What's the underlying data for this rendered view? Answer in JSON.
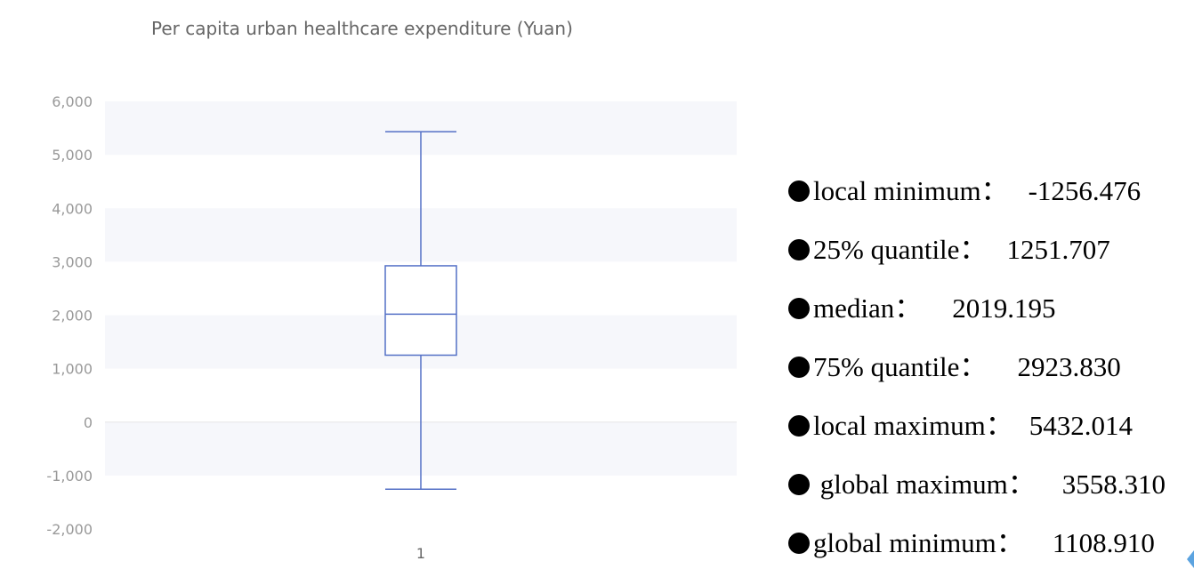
{
  "chart_data": {
    "type": "boxplot",
    "title": "Per capita urban healthcare expenditure (Yuan)",
    "categories": [
      "1"
    ],
    "ylim": [
      -2000,
      6000
    ],
    "yticks": [
      -2000,
      -1000,
      0,
      1000,
      2000,
      3000,
      4000,
      5000,
      6000
    ],
    "ytick_labels": [
      "-2,000",
      "-1,000",
      "0",
      "1,000",
      "2,000",
      "3,000",
      "4,000",
      "5,000",
      "6,000"
    ],
    "box": {
      "whisker_low": -1256.476,
      "q1": 1251.707,
      "median": 2019.195,
      "q3": 2923.83,
      "whisker_high": 5432.014
    },
    "colors": {
      "box": "#5470c6",
      "band": "#f6f7fb",
      "axis_text": "#999999",
      "title": "#666666"
    },
    "grid": "banded"
  },
  "stats": [
    {
      "label": "local minimum：",
      "value": "-1256.476",
      "gap": 22
    },
    {
      "label": "25% quantile：",
      "value": "1251.707",
      "gap": 22
    },
    {
      "label": "median：",
      "value": "2019.195",
      "gap": 34
    },
    {
      "label": "75% quantile：",
      "value": "2923.830",
      "gap": 34
    },
    {
      "label": "local maximum：",
      "value": "5432.014",
      "gap": 18
    },
    {
      "label": " global maximum：",
      "value": "3558.310",
      "gap": 30
    },
    {
      "label": "global minimum：",
      "value": "1108.910",
      "gap": 32
    }
  ]
}
